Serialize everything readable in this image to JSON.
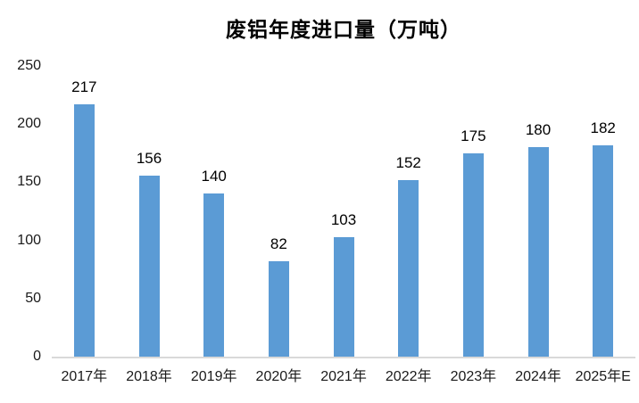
{
  "chart_data": {
    "type": "bar",
    "title": "废铝年度进口量（万吨）",
    "categories": [
      "2017年",
      "2018年",
      "2019年",
      "2020年",
      "2021年",
      "2022年",
      "2023年",
      "2024年",
      "2025年E"
    ],
    "values": [
      217,
      156,
      140,
      82,
      103,
      152,
      175,
      180,
      182
    ],
    "xlabel": "",
    "ylabel": "",
    "ylim": [
      0,
      250
    ],
    "yticks": [
      0,
      50,
      100,
      150,
      200,
      250
    ],
    "grid": false,
    "legend": "none",
    "data_labels": true,
    "bar_color": "#5B9BD5",
    "axis_line_color": "#D9D9D9",
    "text_color": "#000000"
  }
}
